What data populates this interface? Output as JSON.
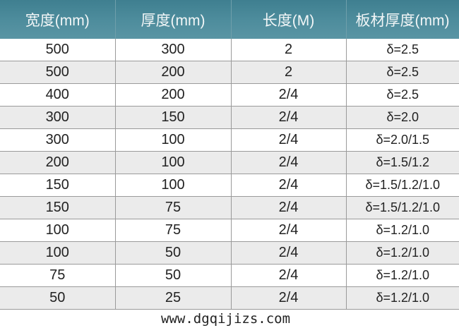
{
  "table": {
    "headers": [
      "宽度(mm)",
      "厚度(mm)",
      "长度(M)",
      "板材厚度(mm)"
    ],
    "rows": [
      [
        "500",
        "300",
        "2",
        "δ=2.5"
      ],
      [
        "500",
        "200",
        "2",
        "δ=2.5"
      ],
      [
        "400",
        "200",
        "2/4",
        "δ=2.5"
      ],
      [
        "300",
        "150",
        "2/4",
        "δ=2.0"
      ],
      [
        "300",
        "100",
        "2/4",
        "δ=2.0/1.5"
      ],
      [
        "200",
        "100",
        "2/4",
        "δ=1.5/1.2"
      ],
      [
        "150",
        "100",
        "2/4",
        "δ=1.5/1.2/1.0"
      ],
      [
        "150",
        "75",
        "2/4",
        "δ=1.5/1.2/1.0"
      ],
      [
        "100",
        "75",
        "2/4",
        "δ=1.2/1.0"
      ],
      [
        "100",
        "50",
        "2/4",
        "δ=1.2/1.0"
      ],
      [
        "75",
        "50",
        "2/4",
        "δ=1.2/1.0"
      ],
      [
        "50",
        "25",
        "2/4",
        "δ=1.2/1.0"
      ]
    ]
  },
  "watermark": "www.dgqijizs.com",
  "colors": {
    "header_bg": "#4d8c9c",
    "alt_row": "#ebebeb"
  }
}
